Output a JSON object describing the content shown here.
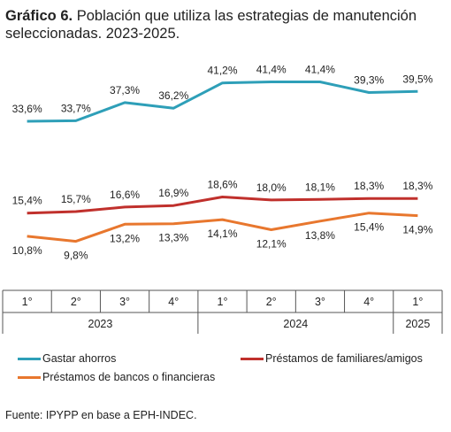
{
  "title": {
    "bold": "Gráfico 6.",
    "text": " Población que utiliza las estrategias de manutención seleccionadas. 2023-2025."
  },
  "source": "Fuente: IPYPP en base a EPH-INDEC.",
  "chart_data": {
    "type": "line",
    "quarters": [
      "1°",
      "2°",
      "3°",
      "4°",
      "1°",
      "2°",
      "3°",
      "4°",
      "1°"
    ],
    "years": [
      {
        "label": "2023",
        "span": 4
      },
      {
        "label": "2024",
        "span": 4
      },
      {
        "label": "2025",
        "span": 1
      }
    ],
    "ylim": [
      5,
      45
    ],
    "grid": false,
    "legend_position": "bottom",
    "series": [
      {
        "name": "Gastar ahorros",
        "color": "#2e9fb8",
        "values": [
          33.6,
          33.7,
          37.3,
          36.2,
          41.2,
          41.4,
          41.4,
          39.3,
          39.5
        ],
        "labels": [
          "33,6%",
          "33,7%",
          "37,3%",
          "36,2%",
          "41,2%",
          "41,4%",
          "41,4%",
          "39,3%",
          "39,5%"
        ],
        "label_side": "above"
      },
      {
        "name": "Préstamos de familiares/amigos",
        "color": "#c0302c",
        "values": [
          15.4,
          15.7,
          16.6,
          16.9,
          18.6,
          18.0,
          18.1,
          18.3,
          18.3
        ],
        "labels": [
          "15,4%",
          "15,7%",
          "16,6%",
          "16,9%",
          "18,6%",
          "18,0%",
          "18,1%",
          "18,3%",
          "18,3%"
        ],
        "label_side": "above"
      },
      {
        "name": "Préstamos de bancos o financieras",
        "color": "#e8772e",
        "values": [
          10.8,
          9.8,
          13.2,
          13.3,
          14.1,
          12.1,
          13.8,
          15.4,
          14.9
        ],
        "labels": [
          "10,8%",
          "9,8%",
          "13,2%",
          "13,3%",
          "14,1%",
          "12,1%",
          "13,8%",
          "15,4%",
          "14,9%"
        ],
        "label_side": "below"
      }
    ]
  }
}
